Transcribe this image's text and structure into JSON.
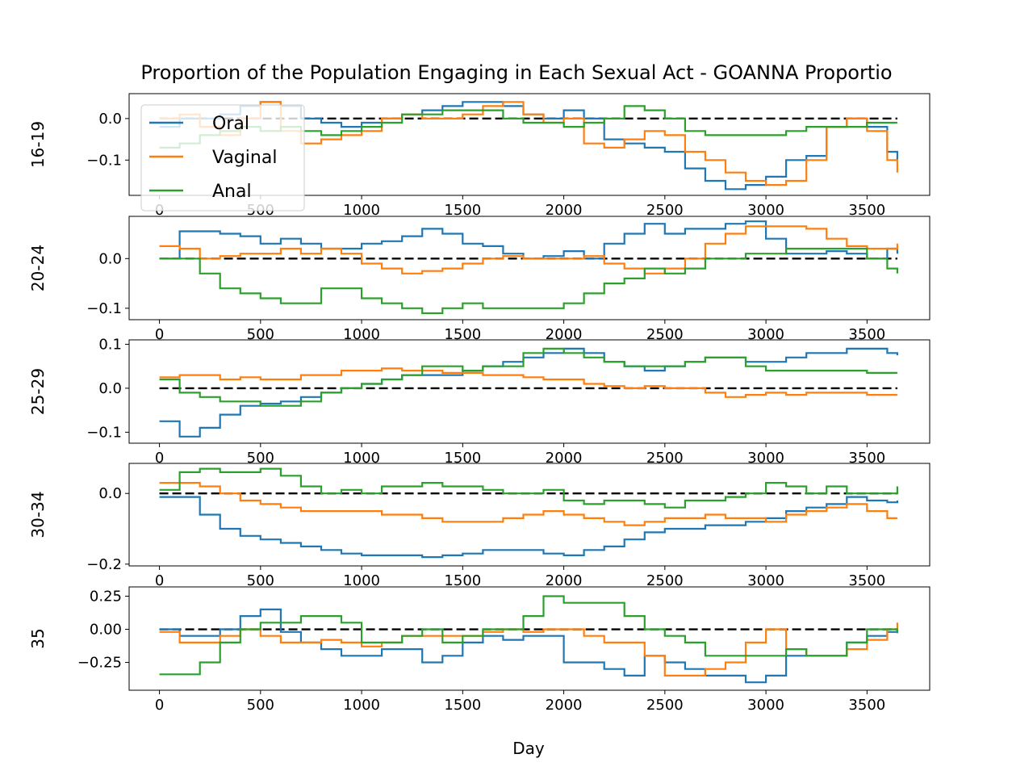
{
  "chart_data": {
    "type": "line",
    "title": "Proportion of the Population Engaging in Each Sexual Act - GOANNA Proportio",
    "xlabel": "Day",
    "xlim": [
      -150,
      3810
    ],
    "x_ticks": [
      0,
      500,
      1000,
      1500,
      2000,
      2500,
      3000,
      3500
    ],
    "x_tick_labels": [
      "0",
      "500",
      "1000",
      "1500",
      "2000",
      "2500",
      "3000",
      "3500"
    ],
    "reference_line": {
      "y": 0,
      "x": [
        0,
        3650
      ],
      "style": "dashed",
      "color": "#000000"
    },
    "legend": {
      "placement": "upper-left",
      "entries": [
        "Oral",
        "Vaginal",
        "Anal"
      ]
    },
    "series_names": [
      "Oral",
      "Vaginal",
      "Anal"
    ],
    "colors": {
      "Oral": "#1f77b4",
      "Vaginal": "#ff7f0e",
      "Anal": "#2ca02c"
    },
    "grid": false,
    "x": [
      0,
      100,
      200,
      300,
      400,
      500,
      600,
      700,
      800,
      900,
      1000,
      1100,
      1200,
      1300,
      1400,
      1500,
      1600,
      1700,
      1800,
      1900,
      2000,
      2100,
      2200,
      2300,
      2400,
      2500,
      2600,
      2700,
      2800,
      2900,
      3000,
      3100,
      3200,
      3300,
      3400,
      3500,
      3600,
      3650
    ],
    "panels": [
      {
        "ylabel": "16-19",
        "ylim": [
          -0.185,
          0.06
        ],
        "y_ticks": [
          0.0,
          -0.1
        ],
        "y_tick_labels": [
          "0.0",
          "−0.1"
        ],
        "series": [
          {
            "name": "Oral",
            "values": [
              -0.02,
              0.0,
              0.0,
              0.01,
              0.03,
              0.04,
              0.03,
              0.0,
              -0.01,
              -0.02,
              -0.01,
              0.0,
              0.01,
              0.02,
              0.03,
              0.04,
              0.04,
              0.03,
              0.01,
              0.0,
              0.02,
              0.0,
              -0.05,
              -0.06,
              -0.07,
              -0.08,
              -0.12,
              -0.15,
              -0.17,
              -0.16,
              -0.14,
              -0.1,
              -0.09,
              -0.02,
              0.0,
              -0.02,
              -0.08,
              -0.1
            ]
          },
          {
            "name": "Vaginal",
            "values": [
              0.0,
              0.01,
              -0.02,
              -0.04,
              0.0,
              0.04,
              -0.03,
              -0.06,
              -0.05,
              -0.04,
              -0.03,
              0.0,
              0.01,
              0.0,
              0.0,
              0.01,
              0.03,
              0.04,
              0.01,
              -0.01,
              0.0,
              -0.06,
              -0.07,
              -0.05,
              -0.03,
              -0.04,
              -0.08,
              -0.1,
              -0.13,
              -0.15,
              -0.16,
              -0.15,
              -0.1,
              -0.02,
              0.0,
              -0.03,
              -0.1,
              -0.13
            ]
          },
          {
            "name": "Anal",
            "values": [
              -0.07,
              -0.06,
              -0.04,
              -0.03,
              -0.02,
              -0.03,
              -0.02,
              -0.03,
              -0.04,
              -0.03,
              -0.02,
              -0.01,
              0.01,
              0.01,
              0.02,
              0.02,
              0.02,
              0.0,
              -0.01,
              -0.01,
              -0.02,
              -0.01,
              0.0,
              0.03,
              0.02,
              0.0,
              -0.03,
              -0.04,
              -0.04,
              -0.04,
              -0.04,
              -0.03,
              -0.02,
              -0.02,
              -0.02,
              -0.01,
              -0.01,
              -0.01
            ]
          }
        ]
      },
      {
        "ylabel": "20-24",
        "ylim": [
          -0.123,
          0.085
        ],
        "y_ticks": [
          0.0,
          -0.1
        ],
        "y_tick_labels": [
          "0.0",
          "−0.1"
        ],
        "series": [
          {
            "name": "Oral",
            "values": [
              0.0,
              0.055,
              0.055,
              0.05,
              0.045,
              0.03,
              0.04,
              0.03,
              0.02,
              0.02,
              0.03,
              0.035,
              0.045,
              0.06,
              0.05,
              0.03,
              0.025,
              0.01,
              0.0,
              0.005,
              0.015,
              0.0,
              0.03,
              0.05,
              0.07,
              0.05,
              0.06,
              0.06,
              0.07,
              0.075,
              0.04,
              0.01,
              0.01,
              0.015,
              0.01,
              0.0,
              0.02,
              0.01
            ]
          },
          {
            "name": "Vaginal",
            "values": [
              0.025,
              0.02,
              0.0,
              0.005,
              0.01,
              0.01,
              0.02,
              0.01,
              0.02,
              0.01,
              -0.01,
              -0.02,
              -0.03,
              -0.025,
              -0.02,
              -0.01,
              0.0,
              0.005,
              0.0,
              0.0,
              0.0,
              0.005,
              -0.01,
              -0.02,
              -0.03,
              -0.02,
              0.0,
              0.03,
              0.05,
              0.065,
              0.065,
              0.065,
              0.06,
              0.04,
              0.025,
              0.02,
              0.02,
              0.03
            ]
          },
          {
            "name": "Anal",
            "values": [
              0.0,
              0.0,
              -0.03,
              -0.06,
              -0.07,
              -0.08,
              -0.09,
              -0.09,
              -0.06,
              -0.06,
              -0.08,
              -0.09,
              -0.1,
              -0.11,
              -0.1,
              -0.09,
              -0.1,
              -0.1,
              -0.1,
              -0.1,
              -0.09,
              -0.07,
              -0.05,
              -0.04,
              -0.02,
              -0.03,
              -0.02,
              0.0,
              0.0,
              0.01,
              0.01,
              0.02,
              0.02,
              0.02,
              0.02,
              0.0,
              -0.02,
              -0.03
            ]
          }
        ]
      },
      {
        "ylabel": "25-29",
        "ylim": [
          -0.125,
          0.11
        ],
        "y_ticks": [
          0.1,
          0.0,
          -0.1
        ],
        "y_tick_labels": [
          "0.1",
          "0.0",
          "−0.1"
        ],
        "series": [
          {
            "name": "Oral",
            "values": [
              -0.075,
              -0.11,
              -0.09,
              -0.06,
              -0.04,
              -0.035,
              -0.03,
              -0.02,
              -0.01,
              0.0,
              0.01,
              0.02,
              0.03,
              0.03,
              0.03,
              0.04,
              0.05,
              0.06,
              0.07,
              0.08,
              0.09,
              0.08,
              0.06,
              0.05,
              0.04,
              0.05,
              0.06,
              0.07,
              0.07,
              0.06,
              0.06,
              0.07,
              0.08,
              0.08,
              0.09,
              0.09,
              0.08,
              0.075
            ]
          },
          {
            "name": "Vaginal",
            "values": [
              0.025,
              0.03,
              0.03,
              0.02,
              0.025,
              0.02,
              0.02,
              0.03,
              0.03,
              0.04,
              0.04,
              0.045,
              0.04,
              0.04,
              0.035,
              0.035,
              0.03,
              0.03,
              0.025,
              0.02,
              0.02,
              0.01,
              0.005,
              0.0,
              0.005,
              0.0,
              0.0,
              -0.01,
              -0.02,
              -0.015,
              -0.01,
              -0.015,
              -0.01,
              -0.01,
              -0.01,
              -0.015,
              -0.015,
              -0.015
            ]
          },
          {
            "name": "Anal",
            "values": [
              0.02,
              -0.01,
              -0.02,
              -0.03,
              -0.03,
              -0.04,
              -0.04,
              -0.03,
              -0.01,
              0.0,
              0.01,
              0.02,
              0.03,
              0.05,
              0.05,
              0.04,
              0.05,
              0.05,
              0.08,
              0.09,
              0.08,
              0.07,
              0.06,
              0.05,
              0.05,
              0.05,
              0.06,
              0.07,
              0.07,
              0.05,
              0.04,
              0.04,
              0.04,
              0.04,
              0.04,
              0.035,
              0.035,
              0.035
            ]
          }
        ]
      },
      {
        "ylabel": "30-34",
        "ylim": [
          -0.205,
          0.085
        ],
        "y_ticks": [
          0.0,
          -0.2
        ],
        "y_tick_labels": [
          "0.0",
          "−0.2"
        ],
        "series": [
          {
            "name": "Oral",
            "values": [
              -0.01,
              -0.01,
              -0.06,
              -0.1,
              -0.12,
              -0.13,
              -0.14,
              -0.15,
              -0.16,
              -0.17,
              -0.175,
              -0.175,
              -0.175,
              -0.18,
              -0.175,
              -0.17,
              -0.16,
              -0.16,
              -0.16,
              -0.17,
              -0.175,
              -0.16,
              -0.15,
              -0.13,
              -0.11,
              -0.1,
              -0.1,
              -0.09,
              -0.09,
              -0.08,
              -0.07,
              -0.05,
              -0.04,
              -0.03,
              -0.01,
              -0.02,
              -0.025,
              -0.02
            ]
          },
          {
            "name": "Vaginal",
            "values": [
              0.03,
              0.03,
              0.02,
              0.0,
              -0.02,
              -0.03,
              -0.04,
              -0.05,
              -0.05,
              -0.05,
              -0.05,
              -0.06,
              -0.06,
              -0.07,
              -0.08,
              -0.08,
              -0.08,
              -0.07,
              -0.06,
              -0.05,
              -0.06,
              -0.07,
              -0.08,
              -0.09,
              -0.08,
              -0.07,
              -0.07,
              -0.06,
              -0.07,
              -0.07,
              -0.08,
              -0.06,
              -0.05,
              -0.04,
              -0.03,
              -0.05,
              -0.07,
              -0.07
            ]
          },
          {
            "name": "Anal",
            "values": [
              0.01,
              0.06,
              0.07,
              0.06,
              0.06,
              0.07,
              0.05,
              0.02,
              0.0,
              0.01,
              0.0,
              0.02,
              0.02,
              0.03,
              0.02,
              0.02,
              0.01,
              0.0,
              0.0,
              0.01,
              -0.02,
              -0.03,
              -0.02,
              -0.02,
              -0.03,
              -0.04,
              -0.02,
              -0.02,
              -0.01,
              0.0,
              0.03,
              0.02,
              0.0,
              0.02,
              0.0,
              0.0,
              0.0,
              0.02
            ]
          }
        ]
      },
      {
        "ylabel": "35",
        "ylim": [
          -0.46,
          0.32
        ],
        "y_ticks": [
          0.25,
          0.0,
          -0.25
        ],
        "y_tick_labels": [
          "0.25",
          "0.00",
          "−0.25"
        ],
        "series": [
          {
            "name": "Oral",
            "values": [
              0.0,
              -0.05,
              -0.05,
              0.0,
              0.1,
              0.15,
              -0.02,
              -0.1,
              -0.15,
              -0.2,
              -0.2,
              -0.15,
              -0.15,
              -0.25,
              -0.2,
              -0.1,
              -0.05,
              -0.08,
              -0.05,
              -0.05,
              -0.25,
              -0.25,
              -0.3,
              -0.35,
              -0.2,
              -0.25,
              -0.3,
              -0.35,
              -0.35,
              -0.4,
              -0.35,
              -0.2,
              -0.2,
              -0.2,
              -0.1,
              -0.05,
              -0.02,
              0.0
            ]
          },
          {
            "name": "Vaginal",
            "values": [
              -0.02,
              -0.1,
              -0.1,
              -0.05,
              0.0,
              -0.05,
              -0.1,
              -0.1,
              -0.08,
              -0.1,
              -0.13,
              -0.1,
              -0.05,
              -0.05,
              -0.05,
              -0.05,
              -0.02,
              0.0,
              -0.02,
              0.0,
              0.0,
              -0.05,
              -0.1,
              -0.1,
              -0.2,
              -0.35,
              -0.35,
              -0.3,
              -0.25,
              -0.1,
              0.0,
              -0.15,
              -0.2,
              -0.2,
              -0.15,
              -0.08,
              0.0,
              0.05
            ]
          },
          {
            "name": "Anal",
            "values": [
              -0.34,
              -0.34,
              -0.25,
              -0.1,
              0.0,
              0.05,
              0.05,
              0.1,
              0.1,
              0.05,
              -0.1,
              -0.1,
              -0.05,
              0.0,
              -0.1,
              -0.05,
              0.0,
              0.0,
              0.1,
              0.25,
              0.2,
              0.2,
              0.2,
              0.1,
              0.0,
              -0.05,
              -0.1,
              -0.2,
              -0.2,
              -0.2,
              -0.2,
              -0.15,
              -0.2,
              -0.2,
              -0.1,
              0.0,
              0.0,
              -0.03
            ]
          }
        ]
      }
    ]
  }
}
